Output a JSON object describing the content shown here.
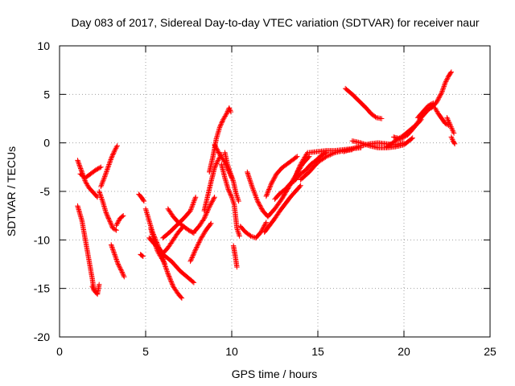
{
  "chart_data": {
    "type": "scatter",
    "title": "Day 083 of 2017, Sidereal Day-to-day VTEC variation (SDTVAR) for receiver naur",
    "xlabel": "GPS time / hours",
    "ylabel": "SDTVAR / TECUs",
    "xlim": [
      0,
      25
    ],
    "ylim": [
      -20,
      10
    ],
    "xticks": [
      "0",
      "5",
      "10",
      "15",
      "20",
      "25"
    ],
    "yticks": [
      "-20",
      "-15",
      "-10",
      "-5",
      "0",
      "5",
      "10"
    ],
    "grid": true,
    "marker": "plus",
    "color": "#ff0000",
    "series": [
      {
        "x": [
          1.05,
          1.3,
          1.5,
          1.7,
          1.9,
          2.1,
          2.2
        ],
        "y": [
          -1.8,
          -3.0,
          -4.0,
          -4.6,
          -5.0,
          -5.4,
          -5.6
        ]
      },
      {
        "x": [
          1.2,
          1.5,
          1.8,
          2.1,
          2.4
        ],
        "y": [
          -3.2,
          -3.6,
          -3.2,
          -2.8,
          -2.5
        ]
      },
      {
        "x": [
          1.05,
          1.3,
          1.5,
          1.7,
          1.9,
          2.0
        ],
        "y": [
          -6.5,
          -8.0,
          -10.0,
          -12.0,
          -14.0,
          -15.2
        ]
      },
      {
        "x": [
          1.9,
          2.05,
          2.2,
          2.3
        ],
        "y": [
          -14.8,
          -15.3,
          -15.6,
          -14.6
        ]
      },
      {
        "x": [
          2.4,
          2.6,
          2.8,
          3.0,
          3.2,
          3.35
        ],
        "y": [
          -4.5,
          -3.6,
          -2.6,
          -1.6,
          -0.8,
          -0.3
        ]
      },
      {
        "x": [
          2.3,
          2.5,
          2.7,
          2.9,
          3.1,
          3.3
        ],
        "y": [
          -5.0,
          -6.0,
          -7.2,
          -8.0,
          -8.8,
          -9.0
        ]
      },
      {
        "x": [
          3.0,
          3.2,
          3.4,
          3.6,
          3.75
        ],
        "y": [
          -10.5,
          -11.5,
          -12.5,
          -13.2,
          -13.8
        ]
      },
      {
        "x": [
          3.3,
          3.5,
          3.7
        ],
        "y": [
          -8.5,
          -7.8,
          -7.5
        ]
      },
      {
        "x": [
          4.6,
          4.75,
          4.9
        ],
        "y": [
          -5.3,
          -5.6,
          -6.0
        ]
      },
      {
        "x": [
          4.7,
          4.85
        ],
        "y": [
          -11.5,
          -11.7
        ]
      },
      {
        "x": [
          5.0,
          5.2,
          5.4,
          5.7,
          6.0,
          6.3,
          6.6,
          6.9,
          7.1
        ],
        "y": [
          -6.8,
          -8.0,
          -9.2,
          -10.5,
          -12.0,
          -13.5,
          -14.8,
          -15.6,
          -16.0
        ]
      },
      {
        "x": [
          5.3,
          5.5,
          5.7,
          5.9,
          6.1
        ],
        "y": [
          -8.8,
          -10.2,
          -11.2,
          -11.8,
          -12.4
        ]
      },
      {
        "x": [
          6.0,
          6.5,
          7.0,
          7.4,
          7.8
        ],
        "y": [
          -11.5,
          -12.2,
          -13.2,
          -13.8,
          -14.4
        ]
      },
      {
        "x": [
          5.2,
          5.5,
          5.8,
          6.0,
          6.3,
          6.6,
          6.9,
          7.2
        ],
        "y": [
          -9.8,
          -10.4,
          -10.9,
          -11.4,
          -10.8,
          -10.0,
          -9.2,
          -8.6
        ]
      },
      {
        "x": [
          6.0,
          6.4,
          6.8,
          7.2,
          7.6,
          7.9
        ],
        "y": [
          -9.8,
          -9.2,
          -8.5,
          -7.8,
          -7.0,
          -5.6
        ]
      },
      {
        "x": [
          6.3,
          6.6,
          6.9,
          7.2,
          7.5,
          7.8
        ],
        "y": [
          -6.8,
          -7.6,
          -8.2,
          -8.6,
          -9.0,
          -9.3
        ]
      },
      {
        "x": [
          7.6,
          7.9,
          8.2,
          8.5,
          8.8
        ],
        "y": [
          -12.2,
          -11.0,
          -9.9,
          -9.0,
          -8.3
        ]
      },
      {
        "x": [
          7.8,
          8.1,
          8.4,
          8.7,
          9.0
        ],
        "y": [
          -9.2,
          -8.6,
          -7.8,
          -6.6,
          -5.6
        ]
      },
      {
        "x": [
          8.4,
          8.6,
          8.8,
          9.0,
          9.2,
          9.4
        ],
        "y": [
          -7.0,
          -5.5,
          -4.0,
          -2.6,
          -1.8,
          -1.2
        ]
      },
      {
        "x": [
          8.7,
          8.9,
          9.1,
          9.3,
          9.5,
          9.7,
          9.85,
          9.95
        ],
        "y": [
          -3.0,
          -1.5,
          0.4,
          1.6,
          2.4,
          3.0,
          3.6,
          3.2
        ]
      },
      {
        "x": [
          9.0,
          9.3,
          9.6,
          9.8,
          10.0
        ],
        "y": [
          -0.2,
          -1.2,
          -2.0,
          -2.8,
          -3.6
        ]
      },
      {
        "x": [
          9.4,
          9.6,
          9.8,
          10.0,
          10.15,
          10.3,
          10.45
        ],
        "y": [
          -2.2,
          -3.6,
          -4.8,
          -5.6,
          -6.4,
          -8.8,
          -9.6
        ]
      },
      {
        "x": [
          9.6,
          9.75,
          9.9,
          10.1,
          10.25,
          10.4
        ],
        "y": [
          -1.0,
          -2.2,
          -3.0,
          -4.0,
          -5.2,
          -6.0
        ]
      },
      {
        "x": [
          10.1,
          10.2,
          10.3
        ],
        "y": [
          -10.6,
          -11.6,
          -12.8
        ]
      },
      {
        "x": [
          10.5,
          10.8,
          11.1,
          11.4,
          11.7,
          12.0
        ],
        "y": [
          -8.6,
          -9.2,
          -9.6,
          -9.8,
          -9.2,
          -8.2
        ]
      },
      {
        "x": [
          10.9,
          11.2,
          11.5,
          11.8,
          12.1,
          12.5,
          12.9,
          13.3,
          13.7,
          14.1,
          14.5
        ],
        "y": [
          -3.0,
          -4.6,
          -6.0,
          -7.0,
          -7.6,
          -6.8,
          -5.8,
          -4.6,
          -3.4,
          -2.2,
          -1.4
        ]
      },
      {
        "x": [
          11.9,
          12.2,
          12.5,
          12.8,
          13.1,
          13.4,
          13.7,
          14.0
        ],
        "y": [
          -9.2,
          -8.5,
          -7.8,
          -7.0,
          -6.3,
          -5.6,
          -5.0,
          -4.4
        ]
      },
      {
        "x": [
          12.0,
          12.3,
          12.6,
          12.9,
          13.2,
          13.5,
          13.8
        ],
        "y": [
          -5.5,
          -4.2,
          -3.2,
          -2.6,
          -2.2,
          -1.8,
          -1.4
        ]
      },
      {
        "x": [
          12.5,
          12.8,
          13.1,
          13.4,
          13.7,
          14.0,
          14.3,
          14.6,
          14.9,
          15.2,
          15.5
        ],
        "y": [
          -5.8,
          -5.2,
          -4.8,
          -4.2,
          -3.8,
          -3.2,
          -2.8,
          -2.2,
          -1.8,
          -1.3,
          -1.0
        ]
      },
      {
        "x": [
          13.6,
          13.8,
          14.0,
          14.2,
          14.4
        ],
        "y": [
          -4.0,
          -3.0,
          -2.2,
          -1.6,
          -1.0
        ]
      },
      {
        "x": [
          14.0,
          14.5,
          15.0,
          15.5,
          16.0,
          16.5,
          17.0
        ],
        "y": [
          -3.8,
          -3.0,
          -2.0,
          -1.4,
          -1.0,
          -0.8,
          -0.7
        ]
      },
      {
        "x": [
          14.5,
          15.0,
          15.5,
          16.0,
          16.5,
          17.0,
          17.5
        ],
        "y": [
          -1.0,
          -0.9,
          -0.8,
          -0.8,
          -0.7,
          -0.6,
          -0.5
        ]
      },
      {
        "x": [
          16.5,
          17.0,
          17.5,
          18.0,
          18.5,
          19.0,
          19.5,
          20.0
        ],
        "y": [
          -0.9,
          -0.6,
          -0.3,
          -0.1,
          0.0,
          -0.1,
          -0.2,
          0.0
        ]
      },
      {
        "x": [
          17.0,
          17.5,
          18.0,
          18.5,
          19.0,
          19.5,
          20.0,
          20.5
        ],
        "y": [
          0.2,
          0.0,
          -0.3,
          -0.5,
          -0.5,
          -0.4,
          -0.2,
          0.5
        ]
      },
      {
        "x": [
          16.6,
          17.0,
          17.4,
          17.8,
          18.1,
          18.4,
          18.7
        ],
        "y": [
          5.6,
          5.0,
          4.3,
          3.6,
          3.0,
          2.6,
          2.5
        ]
      },
      {
        "x": [
          19.0,
          19.5,
          20.0,
          20.4,
          20.8,
          21.0
        ],
        "y": [
          -0.4,
          0.2,
          0.8,
          1.4,
          2.0,
          2.4
        ]
      },
      {
        "x": [
          19.4,
          19.8,
          20.2,
          20.6,
          21.0,
          21.4,
          21.7
        ],
        "y": [
          0.6,
          0.4,
          0.8,
          1.6,
          2.6,
          3.4,
          3.8
        ]
      },
      {
        "x": [
          20.8,
          21.1,
          21.4,
          21.7
        ],
        "y": [
          2.6,
          3.2,
          3.8,
          4.1
        ]
      },
      {
        "x": [
          21.6,
          21.9,
          22.2,
          22.4,
          22.6,
          22.75
        ],
        "y": [
          3.6,
          4.2,
          5.2,
          6.2,
          6.9,
          7.3
        ]
      },
      {
        "x": [
          21.8,
          22.0,
          22.2,
          22.4,
          22.6
        ],
        "y": [
          3.6,
          3.0,
          2.5,
          2.0,
          1.8
        ]
      },
      {
        "x": [
          22.5,
          22.6,
          22.7,
          22.8,
          22.9
        ],
        "y": [
          2.6,
          2.2,
          1.8,
          1.4,
          1.0
        ]
      },
      {
        "x": [
          22.75,
          22.85,
          22.95
        ],
        "y": [
          0.6,
          0.2,
          -0.1
        ]
      }
    ]
  }
}
